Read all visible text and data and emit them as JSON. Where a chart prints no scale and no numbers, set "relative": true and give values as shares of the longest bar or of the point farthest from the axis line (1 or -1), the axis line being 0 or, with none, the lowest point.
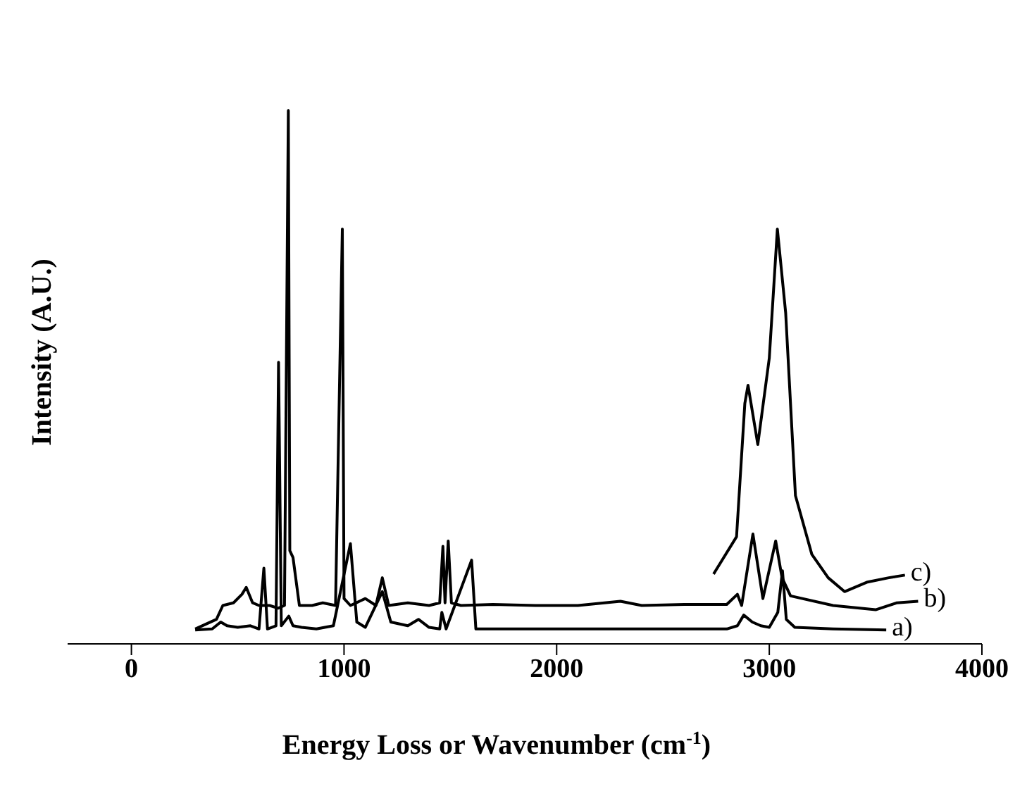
{
  "chart_data": {
    "type": "line",
    "relative": true,
    "xlabel": "Energy Loss or Wavenumber (cm$^{-1}$)",
    "ylabel": "Intensity (A.U.)",
    "xlim": [
      -300,
      4000
    ],
    "xticks": [
      0,
      1000,
      2000,
      3000,
      4000
    ],
    "grid": false,
    "legend": false,
    "marker": "none",
    "line_style": "solid",
    "series": [
      {
        "name": "a)",
        "color": "#000000",
        "x": [
          300,
          380,
          420,
          450,
          500,
          560,
          600,
          623,
          640,
          680,
          692,
          705,
          740,
          760,
          800,
          870,
          950,
          1030,
          1060,
          1100,
          1180,
          1220,
          1300,
          1350,
          1400,
          1450,
          1460,
          1480,
          1600,
          1620,
          1700,
          2000,
          2400,
          2800,
          2850,
          2880,
          2920,
          2960,
          3000,
          3040,
          3062,
          3080,
          3120,
          3300,
          3550
        ],
        "values": [
          0.026,
          0.028,
          0.041,
          0.034,
          0.031,
          0.034,
          0.028,
          0.142,
          0.028,
          0.034,
          0.528,
          0.034,
          0.052,
          0.034,
          0.031,
          0.028,
          0.034,
          0.188,
          0.041,
          0.031,
          0.098,
          0.041,
          0.034,
          0.046,
          0.031,
          0.028,
          0.059,
          0.028,
          0.157,
          0.028,
          0.028,
          0.028,
          0.028,
          0.028,
          0.034,
          0.054,
          0.041,
          0.034,
          0.031,
          0.059,
          0.137,
          0.046,
          0.031,
          0.028,
          0.026
        ]
      },
      {
        "name": "b)",
        "color": "#000000",
        "x": [
          300,
          400,
          430,
          480,
          520,
          540,
          570,
          600,
          650,
          690,
          720,
          738,
          745,
          760,
          790,
          850,
          900,
          960,
          992,
          1000,
          1030,
          1100,
          1150,
          1180,
          1210,
          1300,
          1400,
          1450,
          1465,
          1475,
          1490,
          1505,
          1550,
          1700,
          1900,
          2100,
          2300,
          2400,
          2600,
          2800,
          2850,
          2870,
          2923,
          2970,
          3030,
          3060,
          3100,
          3300,
          3500,
          3600,
          3700
        ],
        "values": [
          0.028,
          0.046,
          0.072,
          0.077,
          0.093,
          0.106,
          0.077,
          0.072,
          0.072,
          0.067,
          0.072,
          1,
          0.175,
          0.162,
          0.072,
          0.072,
          0.077,
          0.072,
          0.778,
          0.085,
          0.072,
          0.085,
          0.072,
          0.124,
          0.072,
          0.077,
          0.072,
          0.077,
          0.183,
          0.077,
          0.193,
          0.077,
          0.072,
          0.074,
          0.072,
          0.072,
          0.08,
          0.072,
          0.074,
          0.074,
          0.093,
          0.072,
          0.206,
          0.085,
          0.193,
          0.124,
          0.09,
          0.072,
          0.064,
          0.077,
          0.08
        ]
      },
      {
        "name": "c)",
        "color": "#000000",
        "x": [
          2738,
          2846,
          2885,
          2900,
          2946,
          3000,
          3038,
          3077,
          3123,
          3200,
          3277,
          3354,
          3462,
          3562,
          3638
        ],
        "values": [
          0.131,
          0.201,
          0.451,
          0.485,
          0.374,
          0.536,
          0.778,
          0.621,
          0.278,
          0.168,
          0.124,
          0.098,
          0.116,
          0.124,
          0.129
        ]
      }
    ]
  }
}
